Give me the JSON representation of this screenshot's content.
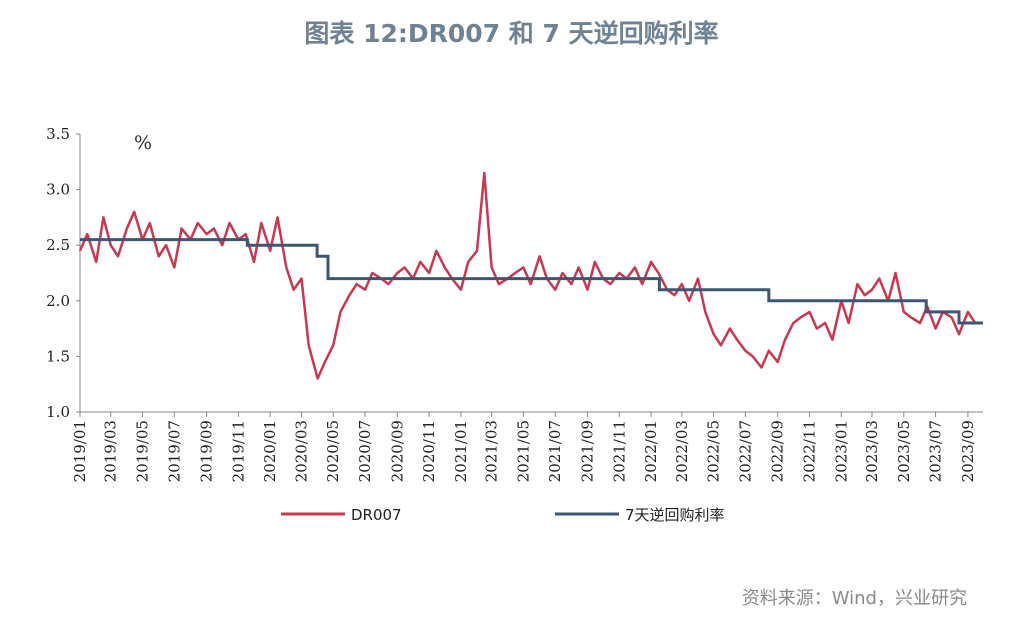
{
  "title": "图表 12:DR007 和 7 天逆回购利率",
  "source": "资料来源：Wind，兴业研究",
  "chart_data": {
    "type": "line",
    "unit": "%",
    "ylim": [
      1.0,
      3.5
    ],
    "yticks": [
      "1.0",
      "1.5",
      "2.0",
      "2.5",
      "3.0",
      "3.5"
    ],
    "xlim": [
      "2019-01-01",
      "2023-09-30"
    ],
    "xticks": [
      "2019/01",
      "2019/03",
      "2019/05",
      "2019/07",
      "2019/09",
      "2019/11",
      "2020/01",
      "2020/03",
      "2020/05",
      "2020/07",
      "2020/09",
      "2020/11",
      "2021/01",
      "2021/03",
      "2021/05",
      "2021/07",
      "2021/09",
      "2021/11",
      "2022/01",
      "2022/03",
      "2022/05",
      "2022/07",
      "2022/09",
      "2022/11",
      "2023/01",
      "2023/03",
      "2023/05",
      "2023/07",
      "2023/09"
    ],
    "legend": "bottom",
    "series": [
      {
        "name": "DR007",
        "color": "#c8384f",
        "x": [
          "2019-01-01",
          "2019-01-15",
          "2019-02-01",
          "2019-02-15",
          "2019-03-01",
          "2019-03-15",
          "2019-04-01",
          "2019-04-15",
          "2019-05-01",
          "2019-05-15",
          "2019-06-01",
          "2019-06-15",
          "2019-07-01",
          "2019-07-15",
          "2019-08-01",
          "2019-08-15",
          "2019-09-01",
          "2019-09-15",
          "2019-10-01",
          "2019-10-15",
          "2019-11-01",
          "2019-11-15",
          "2019-12-01",
          "2019-12-15",
          "2020-01-01",
          "2020-01-15",
          "2020-02-01",
          "2020-02-15",
          "2020-03-01",
          "2020-03-15",
          "2020-04-01",
          "2020-04-15",
          "2020-05-01",
          "2020-05-15",
          "2020-06-01",
          "2020-06-15",
          "2020-07-01",
          "2020-07-15",
          "2020-08-01",
          "2020-08-15",
          "2020-09-01",
          "2020-09-15",
          "2020-10-01",
          "2020-10-15",
          "2020-11-01",
          "2020-11-15",
          "2020-12-01",
          "2020-12-15",
          "2021-01-01",
          "2021-01-15",
          "2021-02-01",
          "2021-02-15",
          "2021-03-01",
          "2021-03-15",
          "2021-04-01",
          "2021-04-15",
          "2021-05-01",
          "2021-05-15",
          "2021-06-01",
          "2021-06-15",
          "2021-07-01",
          "2021-07-15",
          "2021-08-01",
          "2021-08-15",
          "2021-09-01",
          "2021-09-15",
          "2021-10-01",
          "2021-10-15",
          "2021-11-01",
          "2021-11-15",
          "2021-12-01",
          "2021-12-15",
          "2022-01-01",
          "2022-01-15",
          "2022-02-01",
          "2022-02-15",
          "2022-03-01",
          "2022-03-15",
          "2022-04-01",
          "2022-04-15",
          "2022-05-01",
          "2022-05-15",
          "2022-06-01",
          "2022-06-15",
          "2022-07-01",
          "2022-07-15",
          "2022-08-01",
          "2022-08-15",
          "2022-09-01",
          "2022-09-15",
          "2022-10-01",
          "2022-10-15",
          "2022-11-01",
          "2022-11-15",
          "2022-12-01",
          "2022-12-15",
          "2023-01-01",
          "2023-01-15",
          "2023-02-01",
          "2023-02-15",
          "2023-03-01",
          "2023-03-15",
          "2023-04-01",
          "2023-04-15",
          "2023-05-01",
          "2023-05-15",
          "2023-06-01",
          "2023-06-15",
          "2023-07-01",
          "2023-07-15",
          "2023-08-01",
          "2023-08-15",
          "2023-09-01",
          "2023-09-15"
        ],
        "y": [
          2.45,
          2.6,
          2.35,
          2.75,
          2.5,
          2.4,
          2.65,
          2.8,
          2.55,
          2.7,
          2.4,
          2.5,
          2.3,
          2.65,
          2.55,
          2.7,
          2.6,
          2.65,
          2.5,
          2.7,
          2.55,
          2.6,
          2.35,
          2.7,
          2.45,
          2.75,
          2.3,
          2.1,
          2.2,
          1.6,
          1.3,
          1.45,
          1.6,
          1.9,
          2.05,
          2.15,
          2.1,
          2.25,
          2.2,
          2.15,
          2.25,
          2.3,
          2.2,
          2.35,
          2.25,
          2.45,
          2.3,
          2.2,
          2.1,
          2.35,
          2.45,
          3.15,
          2.3,
          2.15,
          2.2,
          2.25,
          2.3,
          2.15,
          2.4,
          2.2,
          2.1,
          2.25,
          2.15,
          2.3,
          2.1,
          2.35,
          2.2,
          2.15,
          2.25,
          2.2,
          2.3,
          2.15,
          2.35,
          2.25,
          2.1,
          2.05,
          2.15,
          2.0,
          2.2,
          1.9,
          1.7,
          1.6,
          1.75,
          1.65,
          1.55,
          1.5,
          1.4,
          1.55,
          1.45,
          1.65,
          1.8,
          1.85,
          1.9,
          1.75,
          1.8,
          1.65,
          2.0,
          1.8,
          2.15,
          2.05,
          2.1,
          2.2,
          2.0,
          2.25,
          1.9,
          1.85,
          1.8,
          1.95,
          1.75,
          1.9,
          1.85,
          1.7,
          1.9,
          1.8
        ]
      },
      {
        "name": "7天逆回购利率",
        "color": "#3f5670",
        "x": [
          "2019-01-01",
          "2019-11-18",
          "2020-03-31",
          "2020-04-21",
          "2022-01-17",
          "2022-08-15",
          "2023-06-13",
          "2023-08-15",
          "2023-09-30"
        ],
        "y": [
          2.55,
          2.5,
          2.4,
          2.2,
          2.1,
          2.0,
          1.9,
          1.8,
          1.8
        ]
      }
    ]
  }
}
